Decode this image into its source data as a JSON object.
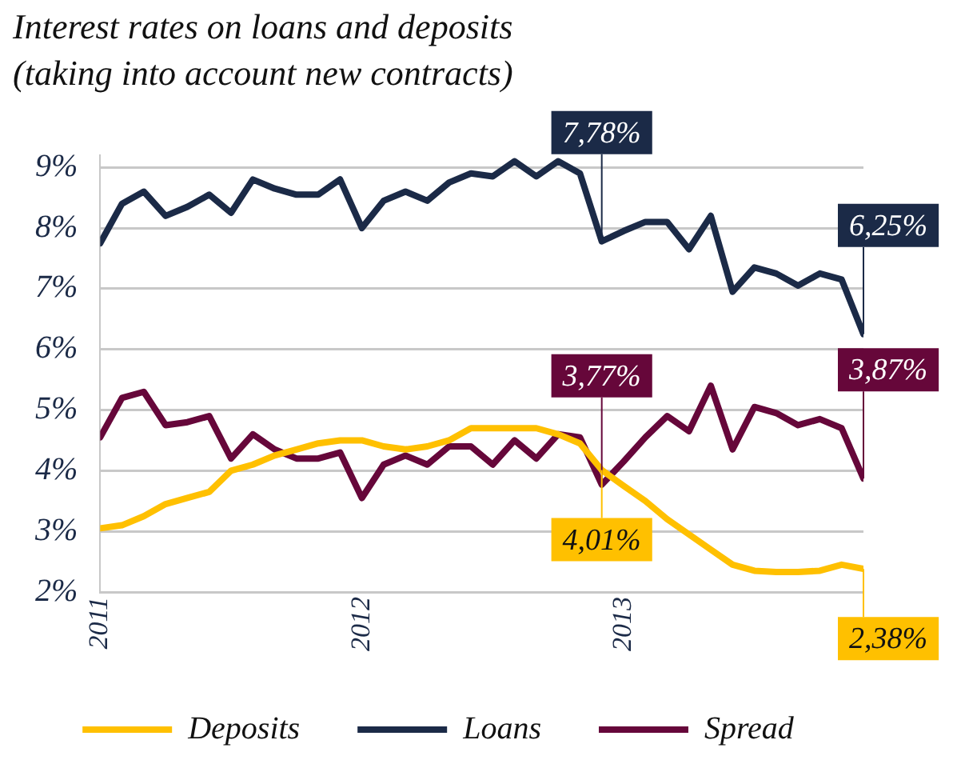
{
  "chart_data": {
    "type": "line",
    "title": "Interest rates on loans and deposits\n(taking into account new contracts)",
    "x": [
      "2011-01",
      "2011-02",
      "2011-03",
      "2011-04",
      "2011-05",
      "2011-06",
      "2011-07",
      "2011-08",
      "2011-09",
      "2011-10",
      "2011-11",
      "2011-12",
      "2012-01",
      "2012-02",
      "2012-03",
      "2012-04",
      "2012-05",
      "2012-06",
      "2012-07",
      "2012-08",
      "2012-09",
      "2012-10",
      "2012-11",
      "2012-12",
      "2013-01",
      "2013-02",
      "2013-03",
      "2013-04",
      "2013-05",
      "2013-06",
      "2013-07",
      "2013-08",
      "2013-09",
      "2013-10",
      "2013-11",
      "2013-12"
    ],
    "xlim": [
      "2011-01",
      "2013-12"
    ],
    "xticks": [
      {
        "value": "2011-01",
        "label": "2011"
      },
      {
        "value": "2012-01",
        "label": "2012"
      },
      {
        "value": "2013-01",
        "label": "2013"
      }
    ],
    "ylim": [
      2,
      9.2
    ],
    "yticks": [
      {
        "value": 2,
        "label": "2%"
      },
      {
        "value": 3,
        "label": "3%"
      },
      {
        "value": 4,
        "label": "4%"
      },
      {
        "value": 5,
        "label": "5%"
      },
      {
        "value": 6,
        "label": "6%"
      },
      {
        "value": 7,
        "label": "7%"
      },
      {
        "value": 8,
        "label": "8%"
      },
      {
        "value": 9,
        "label": "9%"
      }
    ],
    "series": [
      {
        "name": "Deposits",
        "color": "#ffc000",
        "values": [
          3.05,
          3.1,
          3.25,
          3.45,
          3.55,
          3.65,
          4.0,
          4.1,
          4.25,
          4.35,
          4.45,
          4.5,
          4.5,
          4.4,
          4.35,
          4.4,
          4.5,
          4.7,
          4.7,
          4.7,
          4.7,
          4.6,
          4.45,
          4.01,
          3.75,
          3.5,
          3.2,
          2.95,
          2.7,
          2.45,
          2.35,
          2.33,
          2.33,
          2.35,
          2.45,
          2.38
        ]
      },
      {
        "name": "Loans",
        "color": "#1b2a47",
        "values": [
          7.75,
          8.4,
          8.6,
          8.2,
          8.35,
          8.55,
          8.25,
          8.8,
          8.65,
          8.55,
          8.55,
          8.8,
          8.0,
          8.45,
          8.6,
          8.45,
          8.75,
          8.9,
          8.85,
          9.1,
          8.85,
          9.1,
          8.9,
          7.78,
          7.95,
          8.1,
          8.1,
          7.65,
          8.2,
          6.95,
          7.35,
          7.25,
          7.05,
          7.25,
          7.15,
          6.25
        ]
      },
      {
        "name": "Spread",
        "color": "#66073a",
        "values": [
          4.55,
          5.2,
          5.3,
          4.75,
          4.8,
          4.9,
          4.2,
          4.6,
          4.35,
          4.2,
          4.2,
          4.3,
          3.55,
          4.1,
          4.25,
          4.1,
          4.4,
          4.4,
          4.1,
          4.5,
          4.2,
          4.6,
          4.55,
          3.77,
          4.15,
          4.55,
          4.9,
          4.65,
          5.4,
          4.35,
          5.05,
          4.95,
          4.75,
          4.85,
          4.7,
          3.87
        ]
      }
    ],
    "annotations": [
      {
        "text": "7,78%",
        "x": "2012-12",
        "y": 7.78
      },
      {
        "text": "3,77%",
        "x": "2012-12",
        "y": 3.77
      },
      {
        "text": "4,01%",
        "x": "2012-12",
        "y": 4.01
      },
      {
        "text": "6,25%",
        "x": "2013-12",
        "y": 6.25
      },
      {
        "text": "3,87%",
        "x": "2013-12",
        "y": 3.87
      },
      {
        "text": "2,38%",
        "x": "2013-12",
        "y": 2.38
      }
    ],
    "grid": "y",
    "legend": "bottom",
    "marker": "none",
    "line_style": "solid"
  }
}
